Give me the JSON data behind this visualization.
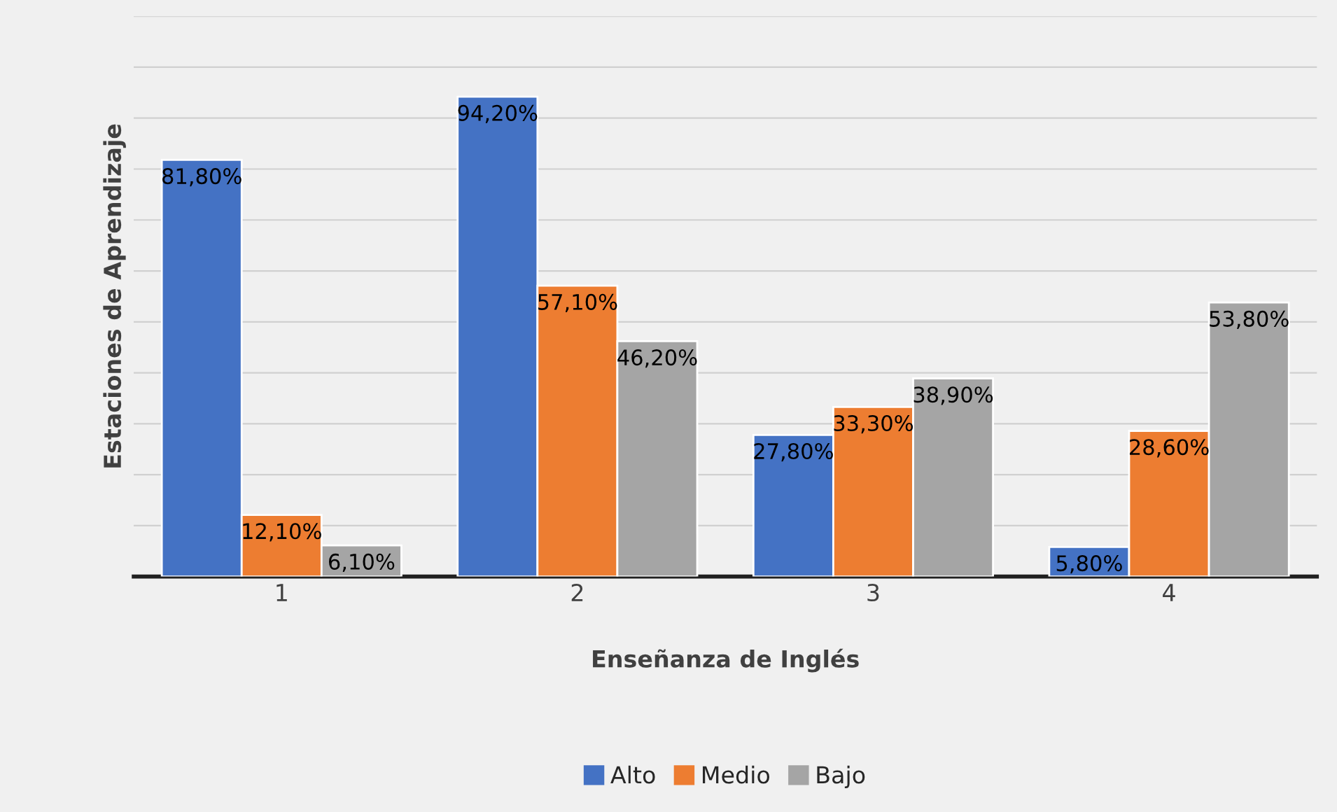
{
  "chart_data": {
    "type": "bar",
    "xlabel": "Enseñanza de Inglés",
    "ylabel": "Estaciones de Aprendizaje",
    "categories": [
      "1",
      "2",
      "3",
      "4"
    ],
    "series": [
      {
        "name": "Alto",
        "color": "#4472c4",
        "values": [
          81.8,
          94.2,
          27.8,
          5.8
        ],
        "value_labels": [
          "81,80%",
          "94,20%",
          "27,80%",
          "5,80%"
        ]
      },
      {
        "name": "Medio",
        "color": "#ed7d31",
        "values": [
          12.1,
          57.1,
          33.3,
          28.6
        ],
        "value_labels": [
          "12,10%",
          "57,10%",
          "33,30%",
          "28,60%"
        ]
      },
      {
        "name": "Bajo",
        "color": "#a5a5a5",
        "values": [
          6.1,
          46.2,
          38.9,
          53.8
        ],
        "value_labels": [
          "6,10%",
          "46,20%",
          "38,90%",
          "53,80%"
        ]
      }
    ],
    "ylim": [
      0,
      110
    ],
    "yticks": [
      {
        "value": 0,
        "label": null
      },
      {
        "value": 10,
        "label": null
      },
      {
        "value": 20,
        "label": null
      },
      {
        "value": 30,
        "label": null
      },
      {
        "value": 40,
        "label": null
      },
      {
        "value": 50,
        "label": null
      },
      {
        "value": 60,
        "label": null
      },
      {
        "value": 70,
        "label": null
      },
      {
        "value": 80,
        "label": null
      },
      {
        "value": 90,
        "label": null
      },
      {
        "value": 100,
        "label": null
      },
      {
        "value": 110,
        "label": null
      }
    ],
    "tick_labels": "x",
    "grid": "y",
    "legend": "bottom"
  }
}
